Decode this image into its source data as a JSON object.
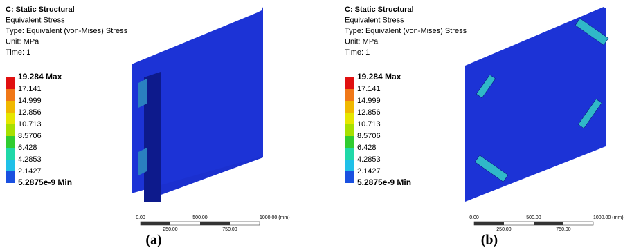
{
  "panels": [
    {
      "header": [
        "C: Static Structural",
        "Equivalent Stress",
        "Type: Equivalent (von-Mises) Stress",
        "Unit: MPa",
        "Time: 1"
      ],
      "legend": {
        "labels": [
          "19.284 Max",
          "17.141",
          "14.999",
          "12.856",
          "10.713",
          "8.5706",
          "6.428",
          "4.2853",
          "2.1427",
          "5.2875e-9 Min"
        ],
        "colors": [
          "#e01010",
          "#f07818",
          "#f0b800",
          "#e6e600",
          "#a8e000",
          "#30cc30",
          "#20d8a8",
          "#20c0e8",
          "#1a50e0"
        ]
      },
      "scale": {
        "top": [
          "0.00",
          "500.00",
          "1000.00 (mm)"
        ],
        "bottom": [
          "250.00",
          "750.00"
        ]
      },
      "caption": "(a)"
    },
    {
      "header": [
        "C: Static Structural",
        "Equivalent Stress",
        "Type: Equivalent (von-Mises) Stress",
        "Unit: MPa",
        "Time: 1"
      ],
      "legend": {
        "labels": [
          "19.284 Max",
          "17.141",
          "14.999",
          "12.856",
          "10.713",
          "8.5706",
          "6.428",
          "4.2853",
          "2.1427",
          "5.2875e-9 Min"
        ],
        "colors": [
          "#e01010",
          "#f07818",
          "#f0b800",
          "#e6e600",
          "#a8e000",
          "#30cc30",
          "#20d8a8",
          "#20c0e8",
          "#1a50e0"
        ]
      },
      "scale": {
        "top": [
          "0.00",
          "500.00",
          "1000.00 (mm)"
        ],
        "bottom": [
          "250.00",
          "750.00"
        ]
      },
      "caption": "(b)"
    }
  ]
}
